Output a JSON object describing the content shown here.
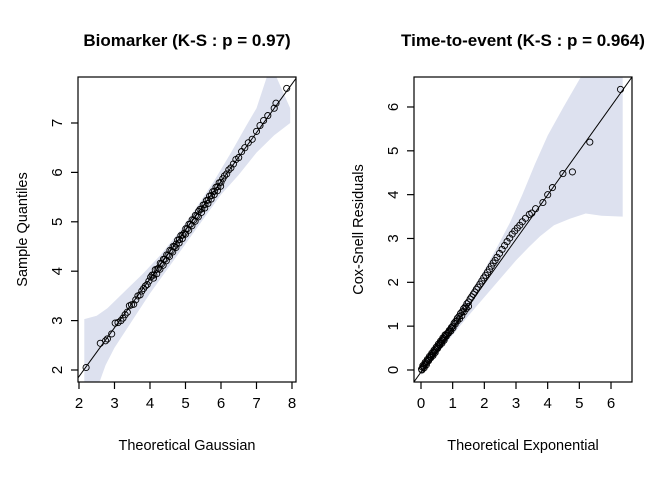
{
  "figure": {
    "background": "#ffffff",
    "text_color": "#000000"
  },
  "chart_data": [
    {
      "type": "scatter",
      "variant": "qq-plot-with-confidence-envelope",
      "title": "Biomarker (K-S : p = 0.97)",
      "xlabel": "Theoretical Gaussian",
      "ylabel": "Sample Quantiles",
      "xlim": [
        1.972,
        8.113
      ],
      "ylim": [
        1.757,
        7.931
      ],
      "xticks": [
        2,
        3,
        4,
        5,
        6,
        7,
        8
      ],
      "yticks": [
        2,
        3,
        4,
        5,
        6,
        7
      ],
      "grid": false,
      "legend": "none",
      "band_color": "#dde1ef",
      "point_color": "#000000",
      "line_color": "#000000",
      "point_style": "open-circle",
      "line": [
        [
          1.97,
          1.84
        ],
        [
          8.11,
          7.9
        ]
      ],
      "band": [
        [
          2.15,
          1.7
        ],
        [
          2.15,
          3.03
        ],
        [
          2.5,
          3.1
        ],
        [
          2.8,
          3.25
        ],
        [
          3.3,
          3.6
        ],
        [
          3.8,
          3.95
        ],
        [
          4.3,
          4.33
        ],
        [
          4.8,
          4.78
        ],
        [
          5.3,
          5.28
        ],
        [
          5.8,
          5.82
        ],
        [
          6.3,
          6.42
        ],
        [
          6.7,
          6.93
        ],
        [
          7.0,
          7.3
        ],
        [
          7.3,
          7.95
        ],
        [
          7.55,
          7.95
        ],
        [
          7.95,
          7.3
        ],
        [
          7.95,
          7.0
        ],
        [
          7.5,
          6.75
        ],
        [
          7.0,
          6.4
        ],
        [
          6.5,
          5.95
        ],
        [
          6.0,
          5.55
        ],
        [
          5.5,
          5.05
        ],
        [
          5.0,
          4.55
        ],
        [
          4.5,
          4.05
        ],
        [
          4.0,
          3.55
        ],
        [
          3.5,
          3.0
        ],
        [
          3.0,
          2.45
        ],
        [
          2.75,
          2.1
        ],
        [
          2.55,
          1.7
        ]
      ],
      "points": [
        [
          2.2,
          2.05
        ],
        [
          2.6,
          2.54
        ],
        [
          2.75,
          2.59
        ],
        [
          2.8,
          2.63
        ],
        [
          2.92,
          2.73
        ],
        [
          3.02,
          2.95
        ],
        [
          3.1,
          2.96
        ],
        [
          3.18,
          3.0
        ],
        [
          3.24,
          3.05
        ],
        [
          3.3,
          3.12
        ],
        [
          3.36,
          3.17
        ],
        [
          3.42,
          3.3
        ],
        [
          3.48,
          3.32
        ],
        [
          3.54,
          3.33
        ],
        [
          3.6,
          3.42
        ],
        [
          3.66,
          3.5
        ],
        [
          3.72,
          3.52
        ],
        [
          3.77,
          3.6
        ],
        [
          3.82,
          3.65
        ],
        [
          3.87,
          3.7
        ],
        [
          3.92,
          3.73
        ],
        [
          3.97,
          3.8
        ],
        [
          4.02,
          3.88
        ],
        [
          4.06,
          3.92
        ],
        [
          4.11,
          3.92
        ],
        [
          4.15,
          4.03
        ],
        [
          4.2,
          4.04
        ],
        [
          4.24,
          4.06
        ],
        [
          4.29,
          4.16
        ],
        [
          4.33,
          4.15
        ],
        [
          4.38,
          4.24
        ],
        [
          4.42,
          4.24
        ],
        [
          4.47,
          4.33
        ],
        [
          4.51,
          4.32
        ],
        [
          4.56,
          4.42
        ],
        [
          4.6,
          4.41
        ],
        [
          4.65,
          4.5
        ],
        [
          4.69,
          4.5
        ],
        [
          4.74,
          4.55
        ],
        [
          4.78,
          4.63
        ],
        [
          4.83,
          4.64
        ],
        [
          4.87,
          4.72
        ],
        [
          4.92,
          4.73
        ],
        [
          4.96,
          4.77
        ],
        [
          5.01,
          4.86
        ],
        [
          5.05,
          4.86
        ],
        [
          5.1,
          4.95
        ],
        [
          5.14,
          4.95
        ],
        [
          5.19,
          5.04
        ],
        [
          5.23,
          5.03
        ],
        [
          5.28,
          5.13
        ],
        [
          5.32,
          5.12
        ],
        [
          5.37,
          5.21
        ],
        [
          5.41,
          5.25
        ],
        [
          5.46,
          5.26
        ],
        [
          5.5,
          5.34
        ],
        [
          5.55,
          5.35
        ],
        [
          5.59,
          5.43
        ],
        [
          5.64,
          5.44
        ],
        [
          5.68,
          5.52
        ],
        [
          5.73,
          5.53
        ],
        [
          5.77,
          5.61
        ],
        [
          5.82,
          5.62
        ],
        [
          5.86,
          5.7
        ],
        [
          5.91,
          5.71
        ],
        [
          5.95,
          5.79
        ],
        [
          6.0,
          5.8
        ],
        [
          4.1,
          3.86
        ],
        [
          4.19,
          3.95
        ],
        [
          4.28,
          4.04
        ],
        [
          4.37,
          4.12
        ],
        [
          4.46,
          4.21
        ],
        [
          4.55,
          4.3
        ],
        [
          4.64,
          4.39
        ],
        [
          4.73,
          4.48
        ],
        [
          4.82,
          4.57
        ],
        [
          4.91,
          4.66
        ],
        [
          5.0,
          4.75
        ],
        [
          5.09,
          4.83
        ],
        [
          5.18,
          4.92
        ],
        [
          5.27,
          5.01
        ],
        [
          5.36,
          5.1
        ],
        [
          5.45,
          5.19
        ],
        [
          5.54,
          5.28
        ],
        [
          5.63,
          5.37
        ],
        [
          5.72,
          5.46
        ],
        [
          5.81,
          5.55
        ],
        [
          5.9,
          5.63
        ],
        [
          5.99,
          5.72
        ],
        [
          6.05,
          5.87
        ],
        [
          6.1,
          5.93
        ],
        [
          6.16,
          5.97
        ],
        [
          6.22,
          6.05
        ],
        [
          6.28,
          6.09
        ],
        [
          6.35,
          6.17
        ],
        [
          6.42,
          6.26
        ],
        [
          6.5,
          6.3
        ],
        [
          6.58,
          6.42
        ],
        [
          6.67,
          6.5
        ],
        [
          6.77,
          6.6
        ],
        [
          6.88,
          6.67
        ],
        [
          7.0,
          6.83
        ],
        [
          7.1,
          6.95
        ],
        [
          7.2,
          7.05
        ],
        [
          7.32,
          7.15
        ],
        [
          7.5,
          7.3
        ],
        [
          7.55,
          7.4
        ],
        [
          7.85,
          7.7
        ]
      ]
    },
    {
      "type": "scatter",
      "variant": "qq-plot-with-confidence-envelope",
      "title": "Time-to-event (K-S : p = 0.964)",
      "xlabel": "Theoretical Exponential",
      "ylabel": "Cox-Snell Residuals",
      "xlim": [
        -0.221,
        6.663
      ],
      "ylim": [
        -0.274,
        6.684
      ],
      "xticks": [
        0,
        1,
        2,
        3,
        4,
        5,
        6
      ],
      "yticks": [
        0,
        1,
        2,
        3,
        4,
        5,
        6
      ],
      "grid": false,
      "legend": "none",
      "band_color": "#dde1ef",
      "point_color": "#000000",
      "line_color": "#000000",
      "point_style": "open-circle",
      "line": [
        [
          -0.22,
          -0.27
        ],
        [
          6.66,
          6.68
        ]
      ],
      "band": [
        [
          0.0,
          -0.12
        ],
        [
          0.0,
          0.1
        ],
        [
          0.5,
          0.62
        ],
        [
          1.0,
          1.15
        ],
        [
          1.5,
          1.7
        ],
        [
          2.0,
          2.28
        ],
        [
          2.4,
          2.8
        ],
        [
          2.8,
          3.35
        ],
        [
          3.2,
          4.0
        ],
        [
          3.6,
          4.7
        ],
        [
          4.0,
          5.35
        ],
        [
          4.5,
          6.0
        ],
        [
          5.1,
          6.75
        ],
        [
          6.37,
          6.75
        ],
        [
          6.37,
          3.5
        ],
        [
          5.7,
          3.52
        ],
        [
          5.2,
          3.57
        ],
        [
          4.7,
          3.45
        ],
        [
          4.2,
          3.3
        ],
        [
          3.76,
          3.05
        ],
        [
          3.4,
          2.8
        ],
        [
          3.0,
          2.5
        ],
        [
          2.5,
          2.08
        ],
        [
          2.0,
          1.66
        ],
        [
          1.5,
          1.24
        ],
        [
          1.0,
          0.8
        ],
        [
          0.5,
          0.35
        ]
      ],
      "points": [
        [
          0.02,
          0.02
        ],
        [
          0.05,
          0.06
        ],
        [
          0.09,
          0.08
        ],
        [
          0.12,
          0.13
        ],
        [
          0.16,
          0.15
        ],
        [
          0.19,
          0.2
        ],
        [
          0.23,
          0.22
        ],
        [
          0.26,
          0.27
        ],
        [
          0.3,
          0.29
        ],
        [
          0.33,
          0.34
        ],
        [
          0.37,
          0.36
        ],
        [
          0.4,
          0.41
        ],
        [
          0.44,
          0.43
        ],
        [
          0.47,
          0.48
        ],
        [
          0.51,
          0.5
        ],
        [
          0.54,
          0.55
        ],
        [
          0.58,
          0.57
        ],
        [
          0.61,
          0.62
        ],
        [
          0.65,
          0.64
        ],
        [
          0.68,
          0.69
        ],
        [
          0.72,
          0.71
        ],
        [
          0.75,
          0.76
        ],
        [
          0.79,
          0.78
        ],
        [
          0.82,
          0.83
        ],
        [
          0.86,
          0.85
        ],
        [
          0.89,
          0.9
        ],
        [
          0.93,
          0.92
        ],
        [
          0.96,
          0.97
        ],
        [
          1.0,
          1.0
        ],
        [
          1.05,
          1.07
        ],
        [
          1.1,
          1.11
        ],
        [
          1.15,
          1.18
        ],
        [
          1.2,
          1.22
        ],
        [
          1.25,
          1.29
        ],
        [
          1.3,
          1.33
        ],
        [
          1.35,
          1.4
        ],
        [
          1.4,
          1.44
        ],
        [
          1.45,
          1.51
        ],
        [
          1.5,
          1.55
        ],
        [
          1.55,
          1.62
        ],
        [
          1.6,
          1.67
        ],
        [
          1.65,
          1.73
        ],
        [
          1.7,
          1.78
        ],
        [
          1.75,
          1.84
        ],
        [
          1.8,
          1.89
        ],
        [
          1.86,
          1.96
        ],
        [
          1.92,
          2.03
        ],
        [
          1.98,
          2.1
        ],
        [
          2.04,
          2.16
        ],
        [
          2.1,
          2.23
        ],
        [
          2.16,
          2.3
        ],
        [
          2.22,
          2.37
        ],
        [
          2.28,
          2.44
        ],
        [
          2.34,
          2.5
        ],
        [
          2.4,
          2.57
        ],
        [
          2.48,
          2.66
        ],
        [
          2.56,
          2.75
        ],
        [
          2.64,
          2.84
        ],
        [
          2.72,
          2.93
        ],
        [
          2.8,
          3.01
        ],
        [
          2.88,
          3.1
        ],
        [
          2.96,
          3.17
        ],
        [
          3.04,
          3.24
        ],
        [
          3.12,
          3.3
        ],
        [
          3.2,
          3.38
        ],
        [
          3.3,
          3.46
        ],
        [
          3.42,
          3.55
        ],
        [
          3.5,
          3.58
        ],
        [
          3.62,
          3.68
        ],
        [
          3.85,
          3.82
        ],
        [
          4.0,
          4.0
        ],
        [
          4.15,
          4.16
        ],
        [
          4.48,
          4.48
        ],
        [
          4.78,
          4.52
        ],
        [
          5.33,
          5.2
        ],
        [
          6.3,
          6.4
        ],
        [
          0.03,
          0.0
        ],
        [
          0.1,
          0.05
        ],
        [
          0.17,
          0.12
        ],
        [
          0.24,
          0.21
        ],
        [
          0.31,
          0.28
        ],
        [
          0.38,
          0.33
        ],
        [
          0.45,
          0.4
        ],
        [
          0.52,
          0.49
        ],
        [
          0.59,
          0.56
        ],
        [
          0.66,
          0.61
        ],
        [
          0.73,
          0.68
        ],
        [
          0.8,
          0.77
        ],
        [
          0.87,
          0.84
        ],
        [
          0.94,
          0.89
        ],
        [
          1.01,
          0.96
        ],
        [
          1.08,
          1.05
        ],
        [
          1.15,
          1.12
        ],
        [
          1.22,
          1.17
        ],
        [
          1.29,
          1.24
        ],
        [
          1.36,
          1.33
        ],
        [
          1.43,
          1.4
        ],
        [
          1.5,
          1.45
        ],
        [
          0.06,
          0.1
        ],
        [
          0.13,
          0.17
        ],
        [
          0.2,
          0.24
        ],
        [
          0.27,
          0.31
        ],
        [
          0.34,
          0.38
        ],
        [
          0.41,
          0.45
        ],
        [
          0.48,
          0.52
        ],
        [
          0.55,
          0.59
        ],
        [
          0.62,
          0.66
        ],
        [
          0.69,
          0.73
        ],
        [
          0.76,
          0.8
        ]
      ]
    }
  ]
}
